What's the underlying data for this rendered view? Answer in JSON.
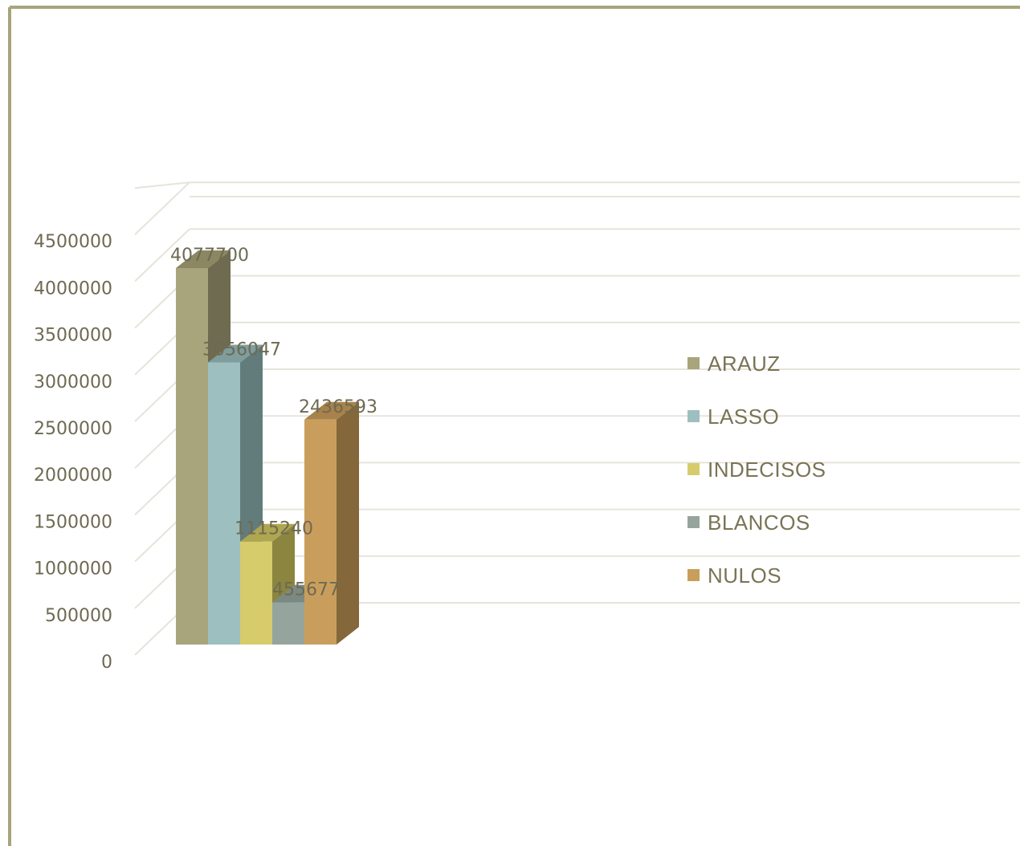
{
  "chart_data": {
    "type": "bar",
    "title": "",
    "xlabel": "",
    "ylabel": "",
    "ylim": [
      0,
      4500000
    ],
    "yticks": [
      "0",
      "500000",
      "1000000",
      "1500000",
      "2000000",
      "2500000",
      "3000000",
      "3500000",
      "4000000",
      "4500000"
    ],
    "grid": true,
    "legend_position": "right",
    "series": [
      {
        "name": "ARAUZ",
        "value": 4077700,
        "label": "4077700",
        "color": "#a8a47c",
        "side": "#6e6b50",
        "top": "#8a8762"
      },
      {
        "name": "LASSO",
        "value": 3056047,
        "label": "3056047",
        "color": "#9dbfbf",
        "side": "#627c7c",
        "top": "#7f9d9d"
      },
      {
        "name": "INDECISOS",
        "value": 1115240,
        "label": "1115240",
        "color": "#d6cc6c",
        "side": "#8c853f",
        "top": "#aea650"
      },
      {
        "name": "BLANCOS",
        "value": 455677,
        "label": "455677",
        "color": "#95a59d",
        "side": "#5f6d66",
        "top": "#7b8983"
      },
      {
        "name": "NULOS",
        "value": 2436593,
        "label": "2436593",
        "color": "#c99e5c",
        "side": "#84673a",
        "top": "#a8824a"
      }
    ]
  }
}
